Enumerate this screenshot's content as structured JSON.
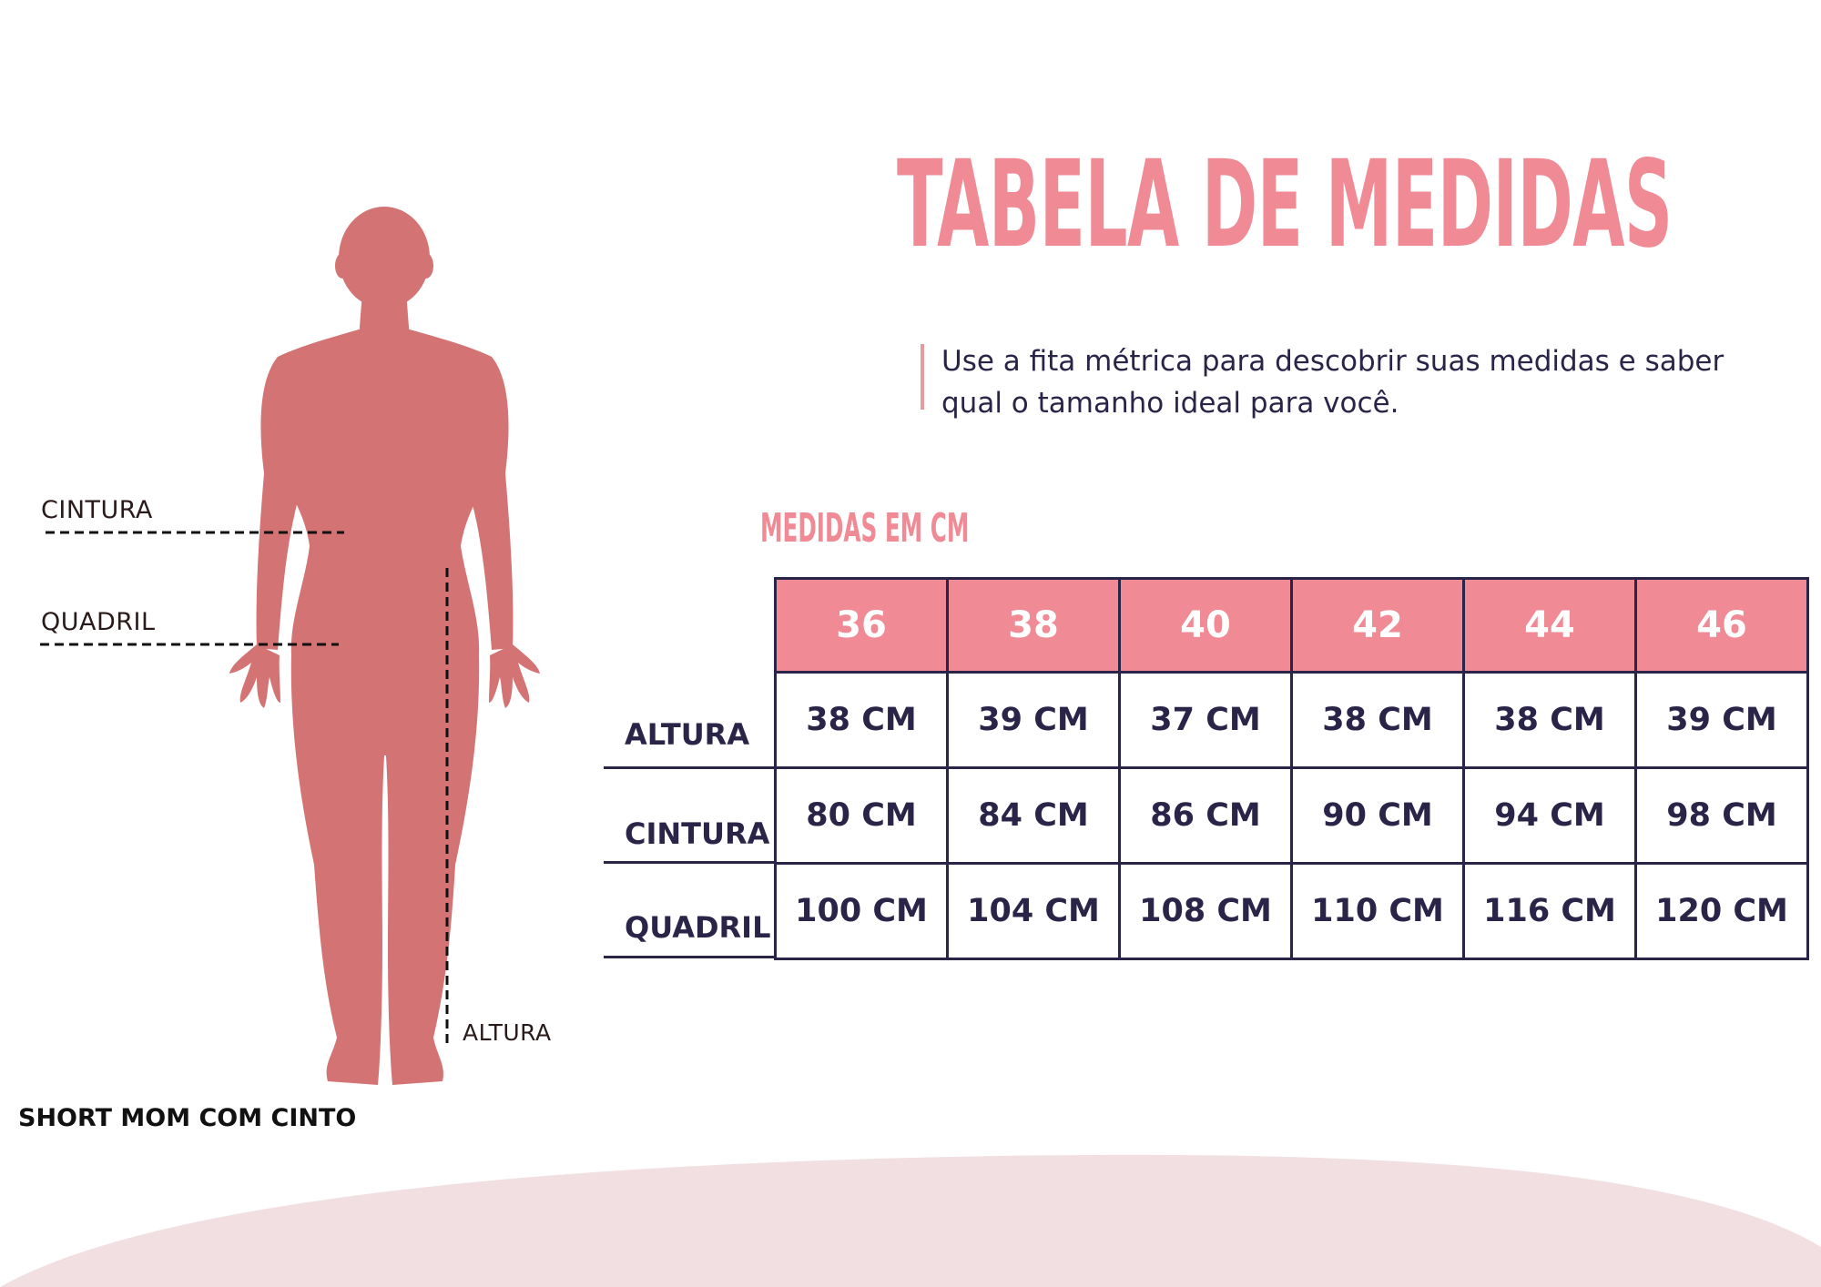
{
  "colors": {
    "accent": "#f08a94",
    "navy": "#2a2548",
    "silhouette": "#d37374",
    "wave": "#f1dfe1"
  },
  "title": "TABELA DE MEDIDAS",
  "subtitle": "Use a fita métrica para descobrir suas medidas e saber qual o tamanho ideal para você.",
  "units_label": "MEDIDAS EM CM",
  "product_name": "SHORT MOM COM CINTO",
  "figure_labels": {
    "cintura": "CINTURA",
    "quadril": "QUADRIL",
    "altura": "ALTURA"
  },
  "table": {
    "sizes": [
      "36",
      "38",
      "40",
      "42",
      "44",
      "46"
    ],
    "rows": [
      {
        "label": "ALTURA",
        "values": [
          "38 CM",
          "39 CM",
          "37 CM",
          "38 CM",
          "38 CM",
          "39 CM"
        ]
      },
      {
        "label": "CINTURA",
        "values": [
          "80 CM",
          "84 CM",
          "86 CM",
          "90 CM",
          "94 CM",
          "98 CM"
        ]
      },
      {
        "label": "QUADRIL",
        "values": [
          "100 CM",
          "104 CM",
          "108 CM",
          "110 CM",
          "116 CM",
          "120 CM"
        ]
      }
    ]
  }
}
